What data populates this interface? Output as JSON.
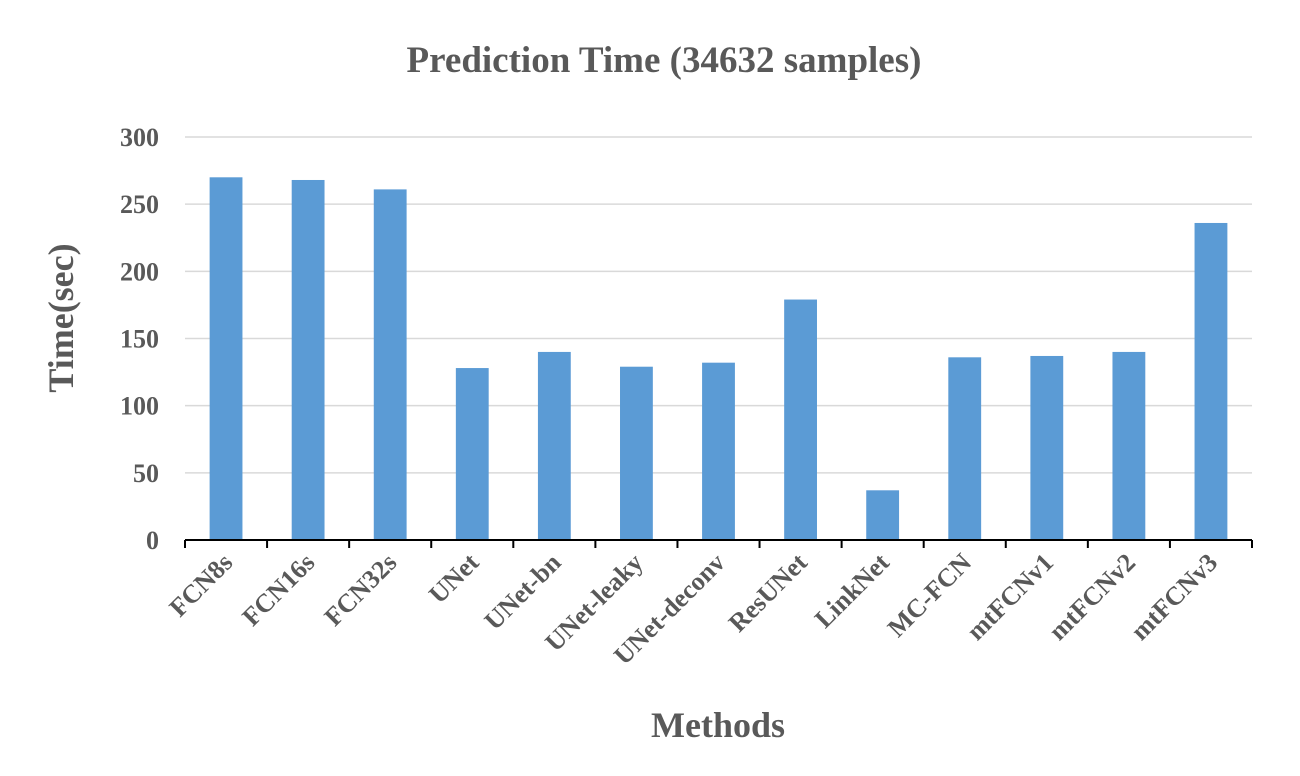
{
  "chart_data": {
    "type": "bar",
    "title": "Prediction Time (34632 samples)",
    "xlabel": "Methods",
    "ylabel": "Time(sec)",
    "categories": [
      "FCN8s",
      "FCN16s",
      "FCN32s",
      "UNet",
      "UNet-bn",
      "UNet-leaky",
      "UNet-deconv",
      "ResUNet",
      "LinkNet",
      "MC-FCN",
      "mtFCNv1",
      "mtFCNv2",
      "mtFCNv3"
    ],
    "values": [
      270,
      268,
      261,
      128,
      140,
      129,
      132,
      179,
      37,
      136,
      137,
      140,
      236
    ],
    "ylim": [
      0,
      300
    ],
    "yticks": [
      0,
      50,
      100,
      150,
      200,
      250,
      300
    ],
    "grid": true,
    "legend": "none",
    "colors": {
      "bar": "#5b9bd5",
      "grid": "#d9d9d9",
      "axis": "#000000",
      "text": "#595959"
    }
  }
}
